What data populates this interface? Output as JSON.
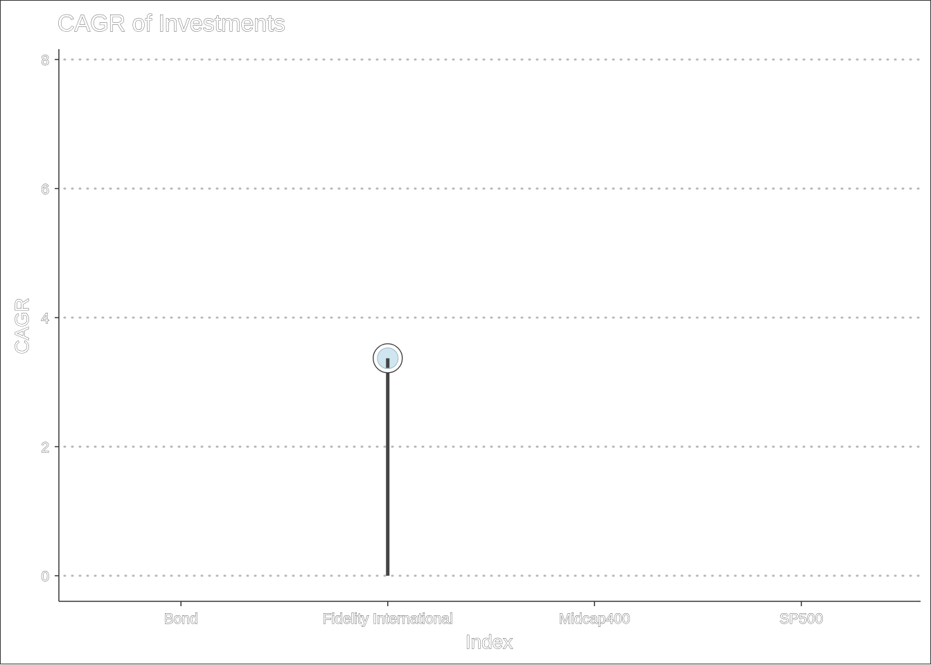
{
  "chart_data": {
    "type": "lollipop",
    "title": "CAGR of Investments",
    "xlabel": "Index",
    "ylabel": "CAGR",
    "categories": [
      "Bond",
      "Fidelity International",
      "Midcap400",
      "SP500"
    ],
    "values": [
      null,
      3.37,
      null,
      null
    ],
    "ylim": [
      0,
      8
    ],
    "yticks": [
      "0",
      "2",
      "4",
      "6",
      "8"
    ],
    "grid": "horizontal dotted",
    "colors": {
      "stem": "#444444",
      "marker_fill": "#cfe6f0",
      "gridline": "#b8b8b8"
    }
  }
}
